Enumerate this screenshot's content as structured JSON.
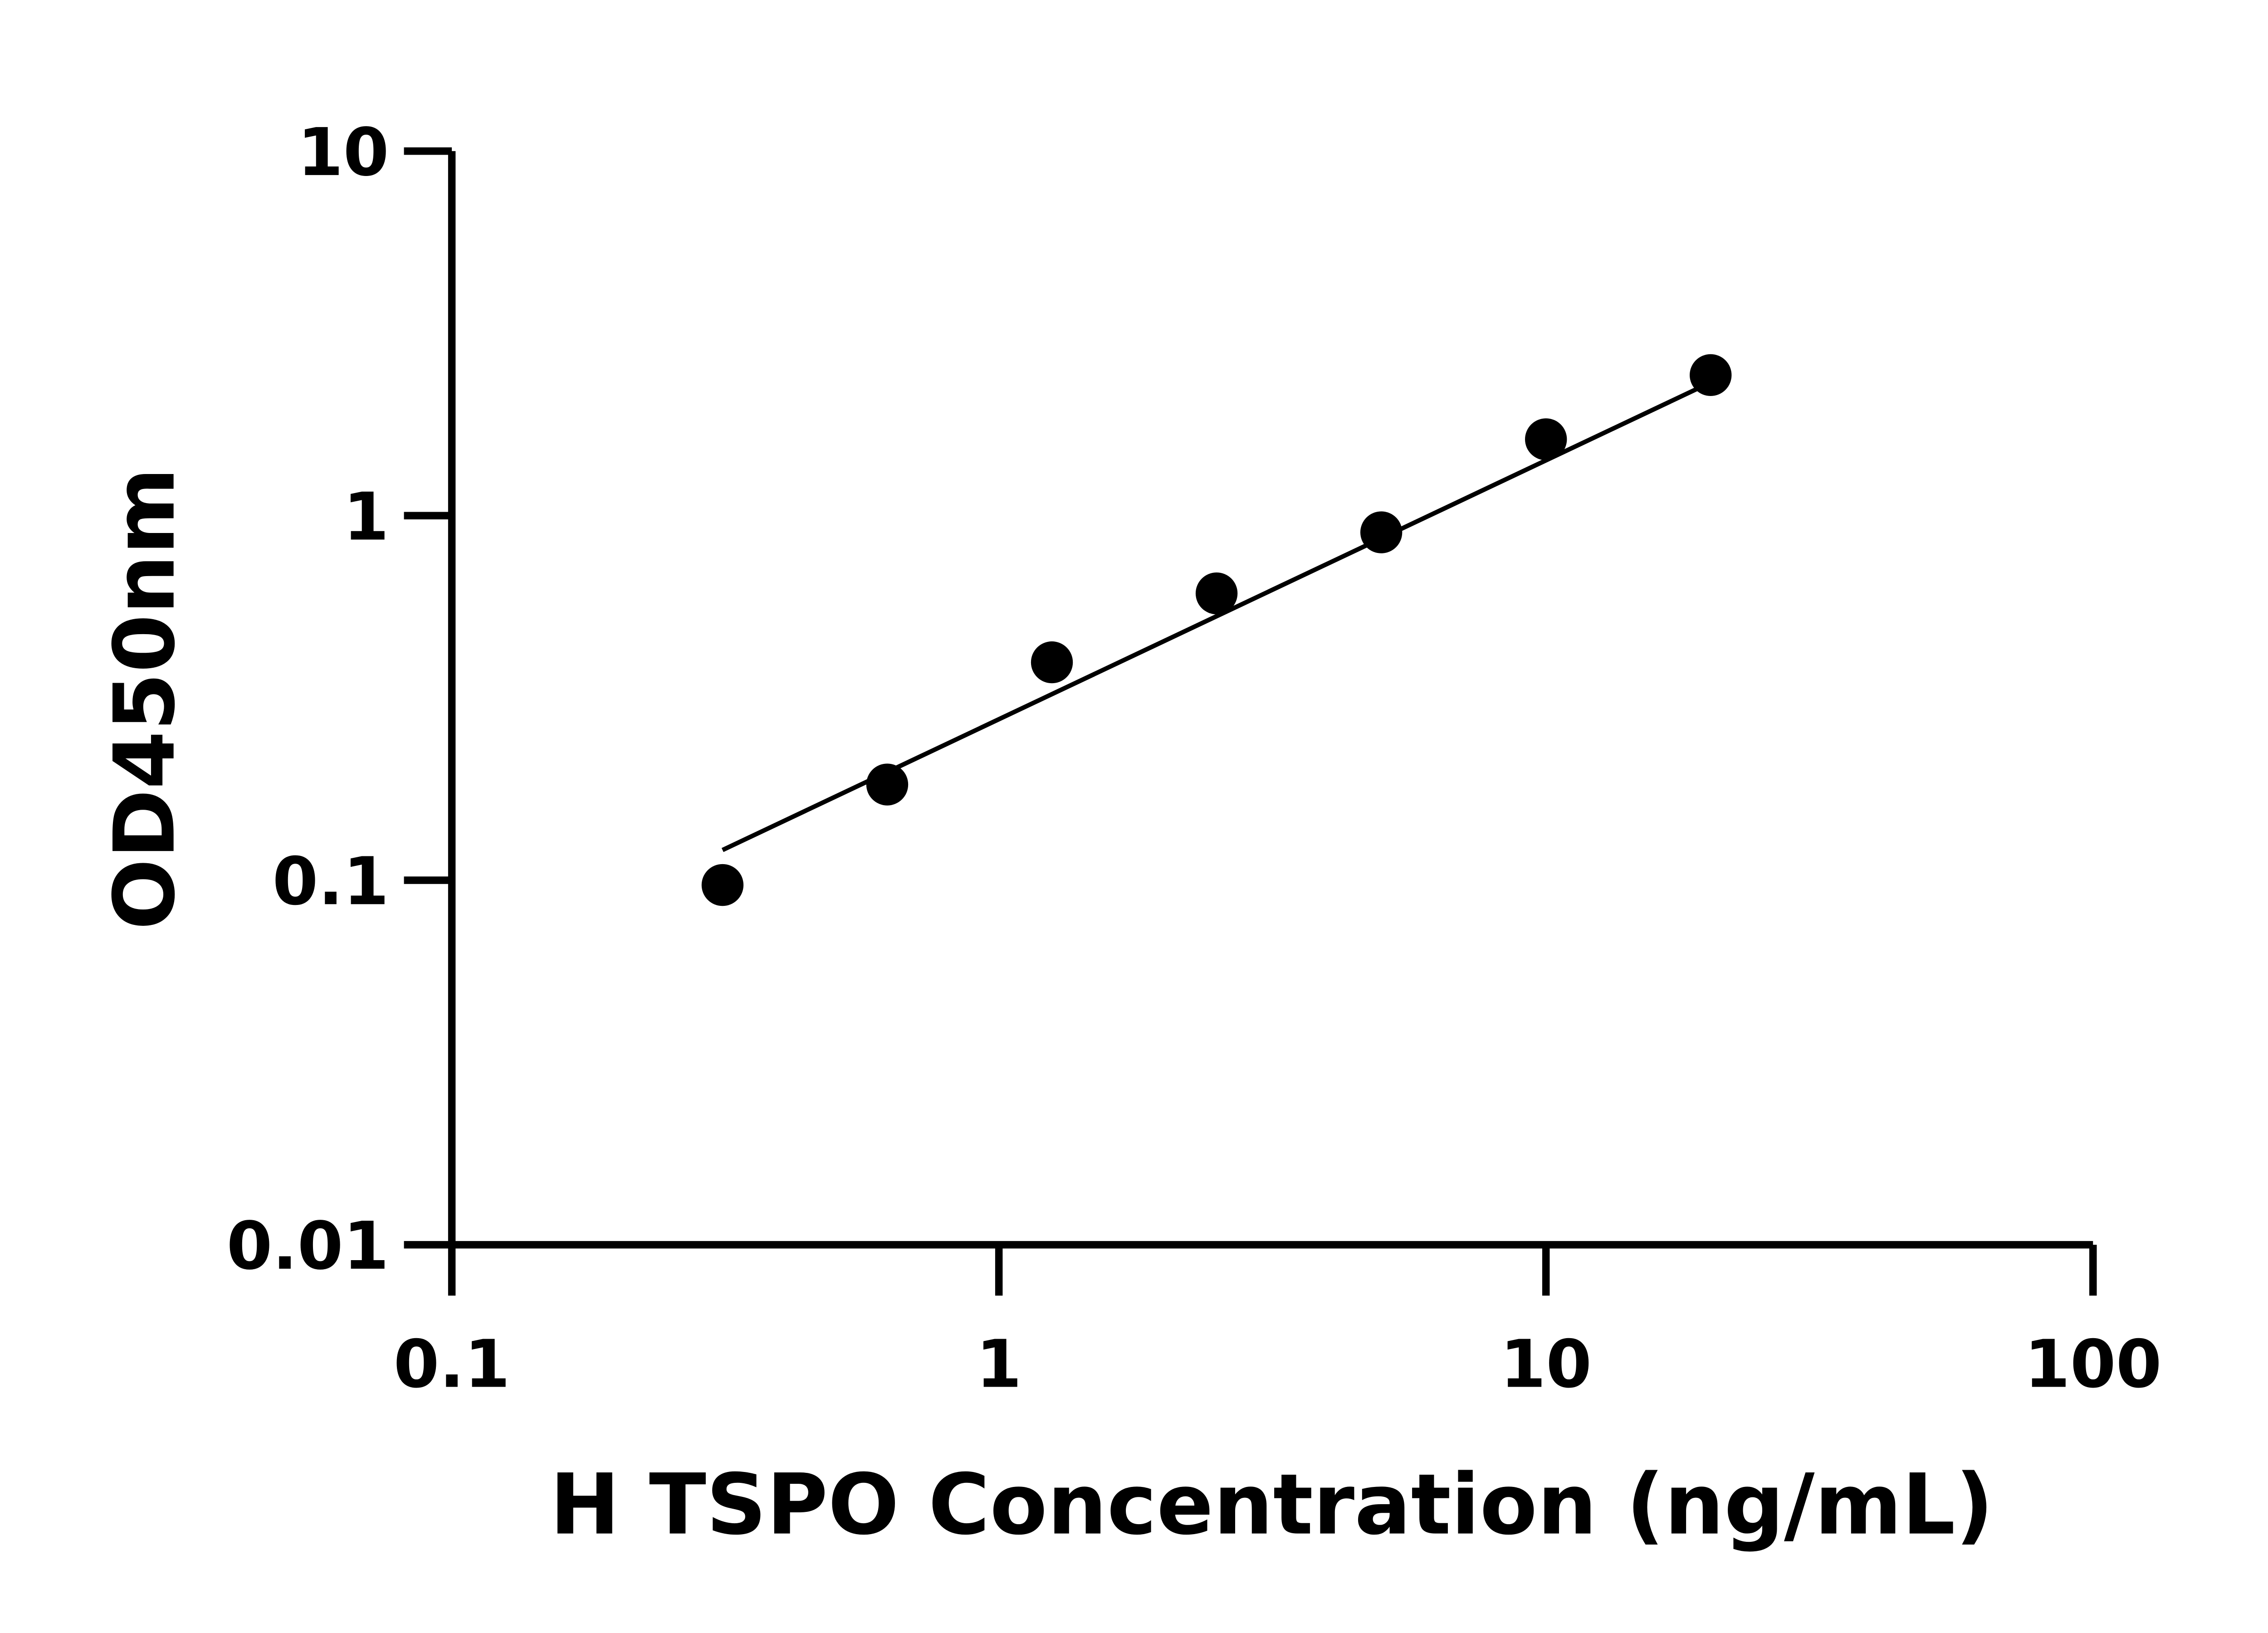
{
  "chart_data": {
    "type": "scatter",
    "title": "",
    "xlabel": "H TSPO Concentration (ng/mL)",
    "ylabel": "OD450nm",
    "x_scale": "log",
    "y_scale": "log",
    "xlim": [
      0.1,
      100
    ],
    "ylim": [
      0.01,
      10
    ],
    "x_ticks": [
      "0.1",
      "1",
      "10",
      "100"
    ],
    "y_ticks": [
      "0.01",
      "0.1",
      "1",
      "10"
    ],
    "grid": false,
    "legend": "none",
    "series": [
      {
        "x": [
          0.3125,
          0.625,
          1.25,
          2.5,
          5,
          10,
          20
        ],
        "y": [
          0.097,
          0.183,
          0.396,
          0.612,
          0.9,
          1.62,
          2.43
        ],
        "marker": "filled-circle",
        "color": "#000000"
      }
    ],
    "fit_line": {
      "x": [
        0.3125,
        20
      ],
      "y": [
        0.121,
        2.32
      ],
      "color": "#000000"
    }
  }
}
